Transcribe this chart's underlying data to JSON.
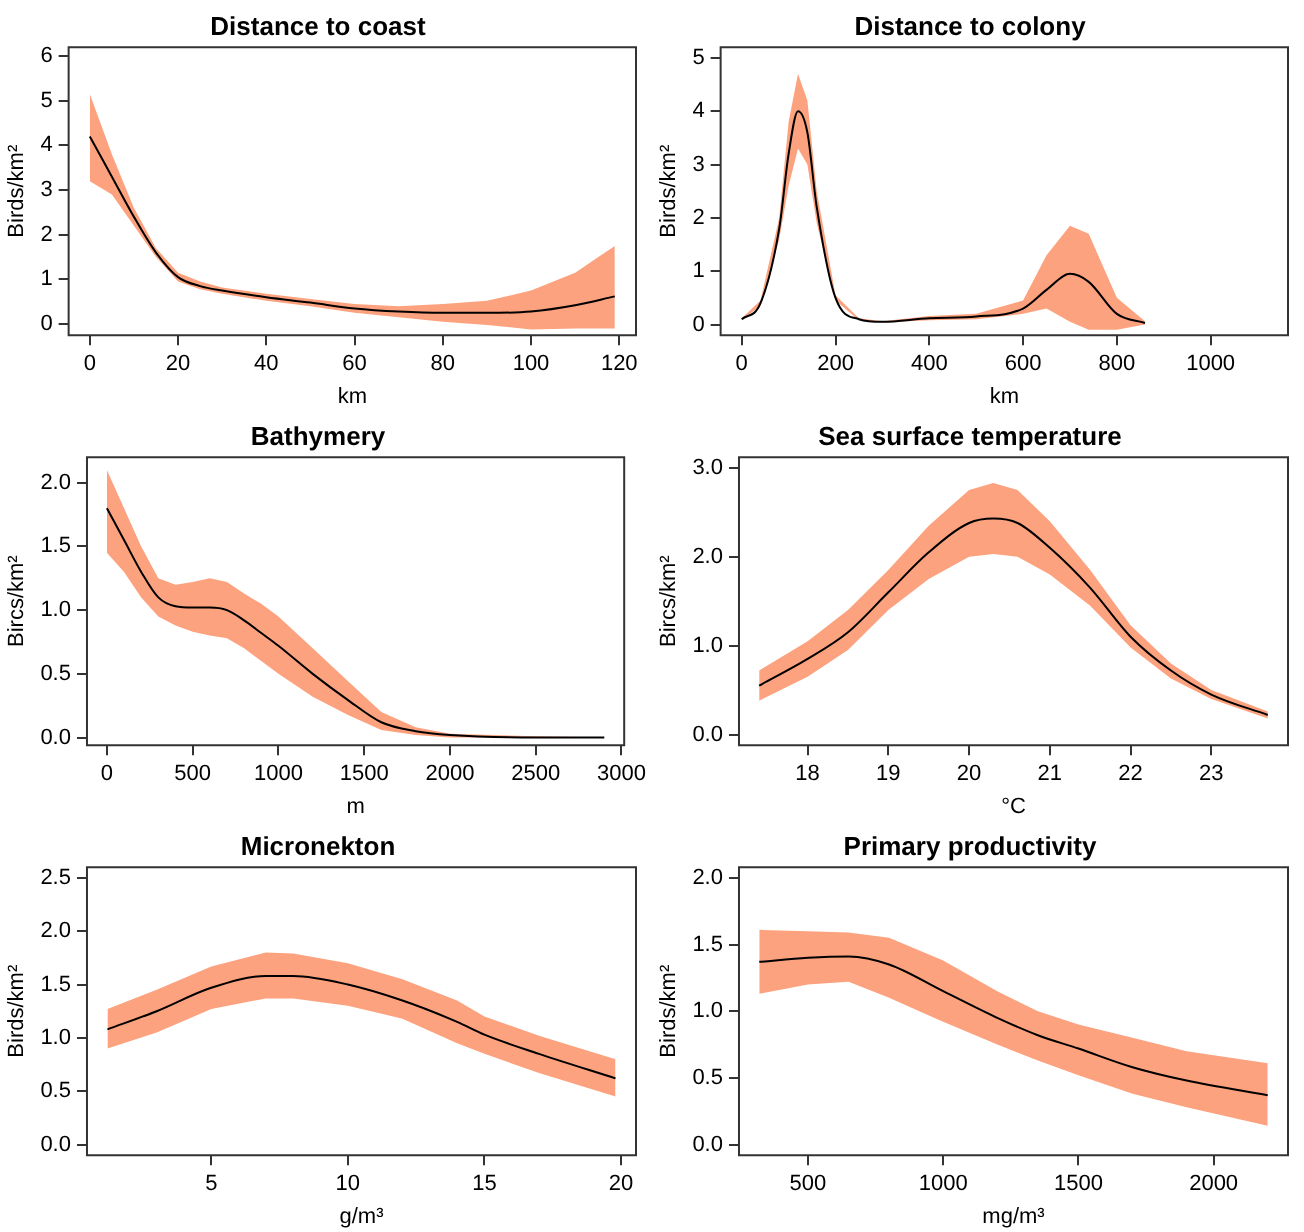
{
  "chart_data": [
    {
      "type": "line",
      "title": "Distance to coast",
      "xlabel": "km",
      "ylabel": "Birds/km²",
      "grid": false,
      "legend": false,
      "marker": "none",
      "line_style": "solid",
      "xlim": [
        -4.8,
        123.8
      ],
      "xticks": [
        0,
        20,
        40,
        60,
        80,
        100,
        120
      ],
      "ylim": [
        -0.25,
        6.2
      ],
      "yticks": [
        0,
        1,
        2,
        3,
        4,
        5,
        6
      ],
      "x": [
        0,
        5,
        10,
        15,
        20,
        25,
        30,
        40,
        50,
        60,
        70,
        80,
        90,
        100,
        110,
        119
      ],
      "series": [
        {
          "color": "#000000",
          "values": [
            4.2,
            3.3,
            2.4,
            1.6,
            1.05,
            0.85,
            0.75,
            0.6,
            0.48,
            0.35,
            0.28,
            0.25,
            0.25,
            0.28,
            0.42,
            0.62
          ],
          "lower": [
            3.2,
            2.9,
            2.2,
            1.5,
            0.95,
            0.78,
            0.68,
            0.52,
            0.4,
            0.25,
            0.15,
            0.05,
            -0.02,
            -0.12,
            -0.1,
            -0.1
          ],
          "upper": [
            5.15,
            3.8,
            2.6,
            1.7,
            1.15,
            0.95,
            0.82,
            0.68,
            0.56,
            0.45,
            0.4,
            0.45,
            0.52,
            0.75,
            1.15,
            1.75
          ]
        }
      ]
    },
    {
      "type": "line",
      "title": "Distance to colony",
      "xlabel": "km",
      "ylabel": "Birds/km²",
      "grid": false,
      "legend": false,
      "marker": "none",
      "line_style": "solid",
      "xlim": [
        -45,
        1165
      ],
      "xticks": [
        0,
        200,
        400,
        600,
        800,
        1000
      ],
      "ylim": [
        -0.2,
        5.2
      ],
      "yticks": [
        0,
        1,
        2,
        3,
        4,
        5
      ],
      "x": [
        0,
        40,
        80,
        100,
        120,
        140,
        160,
        200,
        250,
        300,
        400,
        500,
        600,
        650,
        700,
        740,
        800,
        860
      ],
      "series": [
        {
          "color": "#000000",
          "values": [
            0.1,
            0.4,
            1.8,
            3.2,
            4.0,
            3.6,
            2.2,
            0.5,
            0.1,
            0.05,
            0.12,
            0.15,
            0.3,
            0.65,
            0.95,
            0.8,
            0.2,
            0.03
          ],
          "lower": [
            0.08,
            0.35,
            1.6,
            2.6,
            3.3,
            3.0,
            1.9,
            0.45,
            0.08,
            0.04,
            0.08,
            0.1,
            0.2,
            0.3,
            0.05,
            -0.1,
            -0.1,
            0
          ],
          "upper": [
            0.12,
            0.45,
            2.0,
            3.8,
            4.7,
            4.2,
            2.5,
            0.55,
            0.12,
            0.06,
            0.16,
            0.2,
            0.45,
            1.3,
            1.85,
            1.7,
            0.5,
            0.06
          ]
        }
      ]
    },
    {
      "type": "line",
      "title": "Bathymery",
      "xlabel": "m",
      "ylabel": "Bircs/km²",
      "grid": false,
      "legend": false,
      "marker": "none",
      "line_style": "solid",
      "xlim": [
        -116,
        3016
      ],
      "xticks": [
        0,
        500,
        1000,
        1500,
        2000,
        2500,
        3000
      ],
      "ylim": [
        -0.06,
        2.2
      ],
      "yticks": [
        {
          "value": 0,
          "label": "0.0"
        },
        {
          "value": 0.5,
          "label": "0.5"
        },
        {
          "value": 1,
          "label": "1.0"
        },
        {
          "value": 1.5,
          "label": "1.5"
        },
        {
          "value": 2,
          "label": "2.0"
        }
      ],
      "x": [
        0,
        100,
        200,
        300,
        400,
        500,
        600,
        700,
        800,
        900,
        1000,
        1200,
        1400,
        1600,
        1800,
        2000,
        2500,
        2900
      ],
      "series": [
        {
          "color": "#000000",
          "values": [
            1.8,
            1.55,
            1.3,
            1.1,
            1.03,
            1.02,
            1.02,
            1.0,
            0.92,
            0.82,
            0.72,
            0.5,
            0.3,
            0.12,
            0.05,
            0.02,
            0,
            0
          ],
          "lower": [
            1.45,
            1.3,
            1.1,
            0.95,
            0.88,
            0.83,
            0.8,
            0.78,
            0.7,
            0.6,
            0.5,
            0.32,
            0.18,
            0.06,
            0.02,
            0,
            0,
            0
          ],
          "upper": [
            2.1,
            1.8,
            1.5,
            1.25,
            1.2,
            1.22,
            1.25,
            1.22,
            1.13,
            1.05,
            0.95,
            0.7,
            0.45,
            0.2,
            0.08,
            0.03,
            0.01,
            0
          ]
        }
      ]
    },
    {
      "type": "line",
      "title": "Sea surface temperature",
      "xlabel": "°C",
      "ylabel": "Bircs/km²",
      "grid": false,
      "legend": false,
      "marker": "none",
      "line_style": "solid",
      "xlim": [
        17.15,
        23.95
      ],
      "xticks": [
        18,
        19,
        20,
        21,
        22,
        23
      ],
      "ylim": [
        -0.12,
        3.12
      ],
      "yticks": [
        {
          "value": 0,
          "label": "0.0"
        },
        {
          "value": 1,
          "label": "1.0"
        },
        {
          "value": 2,
          "label": "2.0"
        },
        {
          "value": 3,
          "label": "3.0"
        }
      ],
      "x": [
        17.4,
        18,
        18.5,
        19,
        19.5,
        20,
        20.3,
        20.6,
        21,
        21.5,
        22,
        22.5,
        23,
        23.7
      ],
      "series": [
        {
          "color": "#000000",
          "values": [
            0.55,
            0.85,
            1.15,
            1.6,
            2.05,
            2.38,
            2.43,
            2.38,
            2.1,
            1.65,
            1.1,
            0.72,
            0.45,
            0.22
          ],
          "lower": [
            0.38,
            0.65,
            0.95,
            1.4,
            1.75,
            2.0,
            2.03,
            2.0,
            1.8,
            1.45,
            0.98,
            0.63,
            0.4,
            0.18
          ],
          "upper": [
            0.72,
            1.05,
            1.4,
            1.85,
            2.35,
            2.75,
            2.83,
            2.75,
            2.4,
            1.85,
            1.23,
            0.8,
            0.5,
            0.26
          ]
        }
      ]
    },
    {
      "type": "line",
      "title": "Micronekton",
      "xlabel": "g/m³",
      "ylabel": "Birds/km²",
      "grid": false,
      "legend": false,
      "marker": "none",
      "line_style": "solid",
      "xlim": [
        0.45,
        20.55
      ],
      "xticks": [
        5,
        10,
        15,
        20
      ],
      "ylim": [
        -0.1,
        2.6
      ],
      "yticks": [
        {
          "value": 0,
          "label": "0.0"
        },
        {
          "value": 0.5,
          "label": "0.5"
        },
        {
          "value": 1,
          "label": "1.0"
        },
        {
          "value": 1.5,
          "label": "1.5"
        },
        {
          "value": 2,
          "label": "2.0"
        },
        {
          "value": 2.5,
          "label": "2.5"
        }
      ],
      "x": [
        1.2,
        3,
        5,
        7,
        8,
        10,
        12,
        14,
        15,
        17,
        19.8
      ],
      "series": [
        {
          "color": "#000000",
          "values": [
            1.08,
            1.25,
            1.47,
            1.58,
            1.58,
            1.5,
            1.35,
            1.15,
            1.03,
            0.85,
            0.62
          ],
          "lower": [
            0.9,
            1.05,
            1.27,
            1.37,
            1.37,
            1.3,
            1.18,
            0.95,
            0.85,
            0.67,
            0.45
          ],
          "upper": [
            1.27,
            1.45,
            1.67,
            1.8,
            1.79,
            1.7,
            1.55,
            1.35,
            1.2,
            1.02,
            0.8
          ]
        }
      ]
    },
    {
      "type": "line",
      "title": "Primary productivity",
      "xlabel": "mg/m³",
      "ylabel": "Birds/km²",
      "grid": false,
      "legend": false,
      "marker": "none",
      "line_style": "solid",
      "xlim": [
        245,
        2275
      ],
      "xticks": [
        500,
        1000,
        1500,
        2000
      ],
      "ylim": [
        -0.08,
        2.08
      ],
      "yticks": [
        {
          "value": 0,
          "label": "0.0"
        },
        {
          "value": 0.5,
          "label": "0.5"
        },
        {
          "value": 1,
          "label": "1.0"
        },
        {
          "value": 1.5,
          "label": "1.5"
        },
        {
          "value": 2,
          "label": "2.0"
        }
      ],
      "x": [
        320,
        500,
        650,
        800,
        1000,
        1200,
        1350,
        1500,
        1700,
        1900,
        2200
      ],
      "series": [
        {
          "color": "#000000",
          "values": [
            1.37,
            1.4,
            1.41,
            1.35,
            1.15,
            0.95,
            0.82,
            0.72,
            0.58,
            0.48,
            0.37
          ],
          "lower": [
            1.13,
            1.2,
            1.22,
            1.1,
            0.92,
            0.75,
            0.63,
            0.52,
            0.38,
            0.28,
            0.14
          ],
          "upper": [
            1.61,
            1.6,
            1.59,
            1.55,
            1.38,
            1.15,
            1.0,
            0.9,
            0.8,
            0.7,
            0.61
          ]
        }
      ]
    }
  ]
}
